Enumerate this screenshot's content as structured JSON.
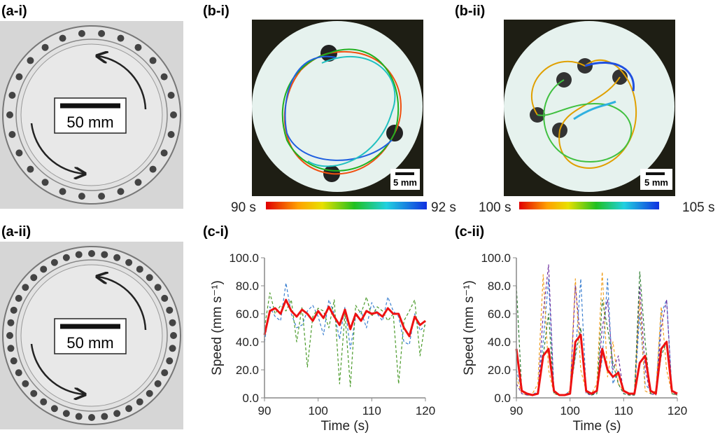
{
  "labels": {
    "a_i": "(a-i)",
    "a_ii": "(a-ii)",
    "b_i": "(b-i)",
    "b_ii": "(b-ii)"
  },
  "scale_bars": [
    "50 mm",
    "50 mm",
    "5 mm",
    "5 mm"
  ],
  "colorbars": [
    {
      "start": "90 s",
      "end": "92 s"
    },
    {
      "start": "100 s",
      "end": "105 s"
    }
  ],
  "chart_data": [
    {
      "type": "line",
      "title": "(c-i)",
      "x_label": "Time (s)",
      "y_label": "Speed (mm s⁻¹)",
      "x": [
        90,
        91,
        92,
        93,
        94,
        95,
        96,
        97,
        98,
        99,
        100,
        101,
        102,
        103,
        104,
        105,
        106,
        107,
        108,
        109,
        110,
        111,
        112,
        113,
        114,
        115,
        116,
        117,
        118,
        119,
        120
      ],
      "xlim": [
        90,
        120
      ],
      "xticks": [
        90,
        100,
        110,
        120
      ],
      "ylim": [
        0,
        100
      ],
      "yticks": [
        {
          "value": 0,
          "label": "0.0"
        },
        {
          "value": 20,
          "label": "20.0"
        },
        {
          "value": 40,
          "label": "40.0"
        },
        {
          "value": 60,
          "label": "60.0"
        },
        {
          "value": 80,
          "label": "80.0"
        },
        {
          "value": 100,
          "label": "100.0"
        }
      ],
      "series": [
        {
          "color": "#3a7fd0",
          "dashed": true,
          "values": [
            40,
            65,
            58,
            55,
            82,
            60,
            50,
            52,
            62,
            66,
            58,
            45,
            70,
            60,
            42,
            65,
            35,
            58,
            62,
            50,
            68,
            60,
            55,
            72,
            62,
            58,
            40,
            38,
            60,
            48,
            52
          ]
        },
        {
          "color": "#4a9a2a",
          "dashed": true,
          "values": [
            50,
            75,
            60,
            66,
            62,
            70,
            40,
            65,
            22,
            58,
            64,
            62,
            50,
            70,
            10,
            60,
            8,
            66,
            60,
            72,
            58,
            65,
            62,
            55,
            60,
            10,
            55,
            62,
            70,
            30,
            55
          ]
        },
        {
          "color": "#ee1111",
          "dashed": false,
          "values": [
            45,
            62,
            64,
            60,
            70,
            62,
            58,
            63,
            60,
            55,
            62,
            57,
            65,
            58,
            52,
            63,
            49,
            60,
            55,
            62,
            60,
            61,
            58,
            64,
            60,
            60,
            50,
            44,
            58,
            52,
            55
          ]
        }
      ]
    },
    {
      "type": "line",
      "title": "(c-ii)",
      "x_label": "Time (s)",
      "y_label": "Speed (mm s⁻¹)",
      "x": [
        90,
        91,
        92,
        93,
        94,
        95,
        96,
        97,
        98,
        99,
        100,
        101,
        102,
        103,
        104,
        105,
        106,
        107,
        108,
        109,
        110,
        111,
        112,
        113,
        114,
        115,
        116,
        117,
        118,
        119,
        120
      ],
      "xlim": [
        90,
        120
      ],
      "xticks": [
        90,
        100,
        110,
        120
      ],
      "ylim": [
        0,
        100
      ],
      "yticks": [
        {
          "value": 0,
          "label": "0.0"
        },
        {
          "value": 20,
          "label": "20.0"
        },
        {
          "value": 40,
          "label": "40.0"
        },
        {
          "value": 60,
          "label": "60.0"
        },
        {
          "value": 80,
          "label": "80.0"
        },
        {
          "value": 100,
          "label": "100.0"
        }
      ],
      "series": [
        {
          "color": "#3a7fd0",
          "dashed": true,
          "values": [
            20,
            5,
            3,
            2,
            5,
            40,
            85,
            5,
            2,
            2,
            5,
            30,
            85,
            5,
            3,
            5,
            28,
            85,
            10,
            20,
            5,
            3,
            2,
            60,
            10,
            5,
            3,
            60,
            70,
            5,
            3
          ]
        },
        {
          "color": "#f0a020",
          "dashed": true,
          "values": [
            15,
            3,
            2,
            3,
            10,
            88,
            20,
            3,
            2,
            2,
            5,
            85,
            20,
            5,
            3,
            10,
            90,
            15,
            40,
            10,
            5,
            3,
            3,
            70,
            5,
            3,
            5,
            65,
            20,
            3,
            2
          ]
        },
        {
          "color": "#7030a0",
          "dashed": true,
          "values": [
            10,
            3,
            2,
            2,
            3,
            60,
            95,
            4,
            2,
            2,
            3,
            80,
            40,
            3,
            2,
            4,
            50,
            70,
            20,
            30,
            3,
            2,
            2,
            80,
            20,
            3,
            2,
            50,
            70,
            4,
            2
          ]
        },
        {
          "color": "#2e7d32",
          "dashed": true,
          "values": [
            80,
            5,
            2,
            2,
            4,
            30,
            60,
            3,
            2,
            2,
            3,
            30,
            50,
            4,
            2,
            3,
            70,
            50,
            25,
            10,
            3,
            2,
            2,
            90,
            40,
            3,
            3,
            30,
            40,
            3,
            2
          ]
        },
        {
          "color": "#ee1111",
          "dashed": false,
          "values": [
            35,
            5,
            3,
            2,
            3,
            30,
            35,
            5,
            2,
            2,
            3,
            40,
            45,
            5,
            3,
            5,
            35,
            20,
            15,
            18,
            5,
            3,
            3,
            25,
            30,
            5,
            3,
            35,
            40,
            5,
            3
          ]
        }
      ]
    }
  ]
}
